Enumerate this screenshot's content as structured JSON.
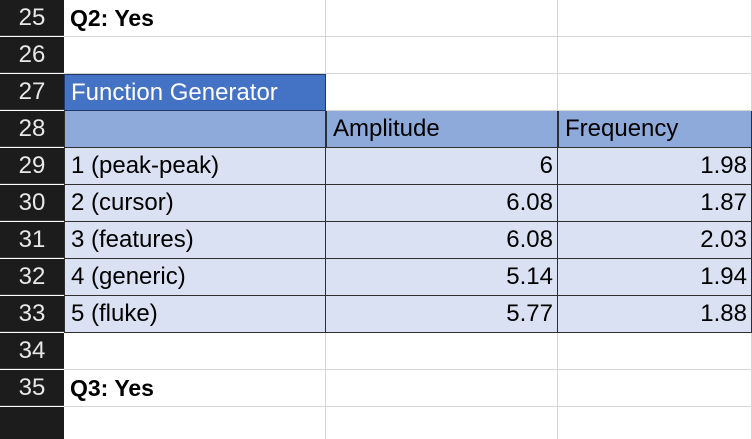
{
  "rows": {
    "r25": {
      "num": "25",
      "label": "Q2: Yes"
    },
    "r26": {
      "num": "26"
    },
    "r27": {
      "num": "27",
      "title": "Function Generator"
    },
    "r28": {
      "num": "28",
      "col_amplitude": "Amplitude",
      "col_frequency": "Frequency"
    },
    "r29": {
      "num": "29",
      "name": "1 (peak-peak)",
      "amplitude": "6",
      "frequency": "1.98"
    },
    "r30": {
      "num": "30",
      "name": "2 (cursor)",
      "amplitude": "6.08",
      "frequency": "1.87"
    },
    "r31": {
      "num": "31",
      "name": "3 (features)",
      "amplitude": "6.08",
      "frequency": "2.03"
    },
    "r32": {
      "num": "32",
      "name": "4 (generic)",
      "amplitude": "5.14",
      "frequency": "1.94"
    },
    "r33": {
      "num": "33",
      "name": "5 (fluke)",
      "amplitude": "5.77",
      "frequency": "1.88"
    },
    "r34": {
      "num": "34"
    },
    "r35": {
      "num": "35",
      "label": "Q3: Yes"
    }
  },
  "colors": {
    "title_fill": "#4472c4",
    "header_fill": "#8eaadb",
    "band_fill": "#d9e1f2",
    "row_header_bg": "#1c1c1c"
  }
}
